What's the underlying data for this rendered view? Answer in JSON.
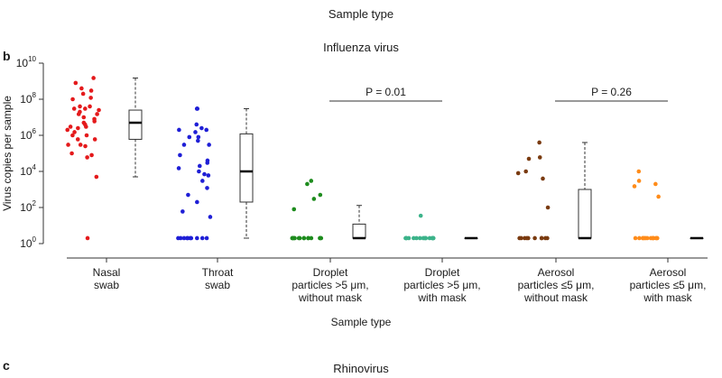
{
  "figure": {
    "top_caption": "Sample type",
    "panel_b_letter": "b",
    "panel_c_letter": "c",
    "panel_c_title": "Rhinovirus"
  },
  "chart_data": {
    "type": "scatter",
    "title": "Influenza virus",
    "xlabel": "Sample type",
    "ylabel": "Virus copies per sample",
    "yscale": "log",
    "ylim": [
      1,
      10000000000
    ],
    "yticks": [
      {
        "base": "10",
        "exp": "0"
      },
      {
        "base": "10",
        "exp": "2"
      },
      {
        "base": "10",
        "exp": "4"
      },
      {
        "base": "10",
        "exp": "6"
      },
      {
        "base": "10",
        "exp": "8"
      },
      {
        "base": "10",
        "exp": "10"
      }
    ],
    "categories": [
      {
        "lines": [
          "Nasal",
          "swab"
        ]
      },
      {
        "lines": [
          "Throat",
          "swab"
        ]
      },
      {
        "lines": [
          "Droplet",
          "particles >5 μm,",
          "without mask"
        ]
      },
      {
        "lines": [
          "Droplet",
          "particles >5 μm,",
          "with mask"
        ]
      },
      {
        "lines": [
          "Aerosol",
          "particles ≤5 μm,",
          "without mask"
        ]
      },
      {
        "lines": [
          "Aerosol",
          "particles ≤5 μm,",
          "with mask"
        ]
      }
    ],
    "comparisons": [
      {
        "groups": [
          2,
          3
        ],
        "label": "P = 0.01"
      },
      {
        "groups": [
          4,
          5
        ],
        "label": "P = 0.26"
      }
    ],
    "series": [
      {
        "color": "#e41a1c",
        "values": [
          100000000,
          120000000,
          30000000,
          400000000,
          800000000,
          1500000000,
          300000000,
          200000000,
          5000000,
          10000000,
          2000000,
          3000000,
          1000000,
          20000000,
          8000000,
          600000,
          300000,
          1500000,
          25000000,
          40000000,
          600000,
          6000000,
          300000,
          60000,
          15000000,
          30000000,
          80000,
          100000,
          5000,
          1000000,
          2500000,
          4000000,
          15000000,
          40000000,
          250000,
          3000000,
          2
        ],
        "box": {
          "min": 5000,
          "q1": 600000,
          "median": 5000000,
          "q3": 25000000,
          "max": 1500000000
        }
      },
      {
        "color": "#1f1fd6",
        "values": [
          30000000,
          2000000,
          800000,
          2000000,
          300000,
          30000,
          10000,
          3000,
          80000,
          20000,
          6000,
          4000000,
          1500000,
          800000,
          500000,
          300000,
          40000,
          15000,
          7000,
          1200,
          500,
          60,
          30,
          200,
          2500000,
          30000000,
          2,
          2,
          2,
          2,
          2,
          2,
          2,
          2,
          2,
          2
        ],
        "box": {
          "min": 2,
          "q1": 200,
          "median": 10000,
          "q3": 1200000,
          "max": 30000000
        }
      },
      {
        "color": "#1e8c1e",
        "values": [
          3000,
          2000,
          500,
          300,
          80,
          2,
          2,
          2,
          2,
          2,
          2,
          2,
          2,
          2,
          2,
          2,
          2,
          2,
          2,
          2
        ],
        "box": {
          "min": 2,
          "q1": 2,
          "median": 2,
          "q3": 12,
          "max": 130
        }
      },
      {
        "color": "#3cb38a",
        "values": [
          35,
          2,
          2,
          2,
          2,
          2,
          2,
          2,
          2,
          2,
          2,
          2,
          2,
          2,
          2,
          2,
          2,
          2
        ],
        "box": {
          "min": 2,
          "q1": 2,
          "median": 2,
          "q3": 2,
          "max": 2
        }
      },
      {
        "color": "#7a3b10",
        "values": [
          400000,
          50000,
          60000,
          10000,
          8000,
          4000,
          100,
          2,
          2,
          2,
          2,
          2,
          2,
          2,
          2,
          2,
          2
        ],
        "box": {
          "min": 2,
          "q1": 2,
          "median": 2,
          "q3": 1000,
          "max": 400000
        }
      },
      {
        "color": "#ff8c1a",
        "values": [
          10000,
          2000,
          1500,
          3000,
          400,
          2,
          2,
          2,
          2,
          2,
          2,
          2,
          2,
          2,
          2,
          2,
          2,
          2,
          2
        ],
        "box": {
          "min": 2,
          "q1": 2,
          "median": 2,
          "q3": 2,
          "max": 2
        }
      }
    ]
  }
}
